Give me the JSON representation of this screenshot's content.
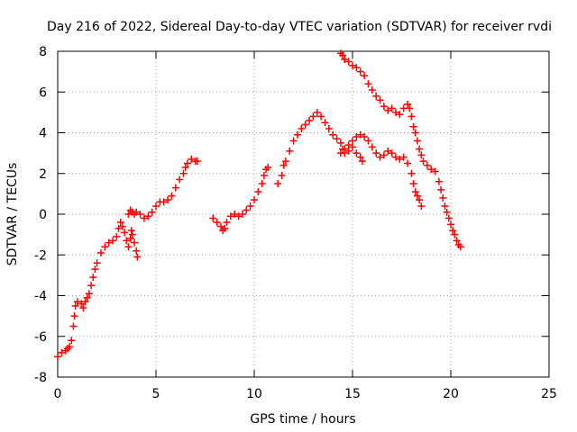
{
  "chart_data": {
    "type": "scatter",
    "title": "Day 216 of 2022, Sidereal Day-to-day VTEC variation (SDTVAR) for receiver rvdi",
    "xlabel": "GPS time / hours",
    "ylabel": "SDTVAR / TECUs",
    "xlim": [
      0,
      25
    ],
    "ylim": [
      -8,
      8
    ],
    "xticks": [
      0,
      5,
      10,
      15,
      20,
      25
    ],
    "yticks": [
      -8,
      -6,
      -4,
      -2,
      0,
      2,
      4,
      6,
      8
    ],
    "grid": true,
    "marker": "+",
    "colors": {
      "series": "#ff0000",
      "grid": "#a0a0a0",
      "axis": "#000000"
    },
    "series": [
      {
        "points": [
          [
            0.0,
            -7.0
          ],
          [
            0.2,
            -6.8
          ],
          [
            0.4,
            -6.7
          ],
          [
            0.5,
            -6.6
          ],
          [
            0.6,
            -6.5
          ],
          [
            0.7,
            -6.2
          ],
          [
            0.8,
            -5.5
          ],
          [
            0.85,
            -5.0
          ],
          [
            0.9,
            -4.5
          ],
          [
            1.0,
            -4.3
          ],
          [
            1.2,
            -4.4
          ],
          [
            1.3,
            -4.6
          ],
          [
            1.4,
            -4.3
          ],
          [
            1.5,
            -4.1
          ],
          [
            1.6,
            -3.9
          ],
          [
            1.7,
            -3.5
          ],
          [
            1.8,
            -3.1
          ],
          [
            1.9,
            -2.7
          ],
          [
            2.0,
            -2.4
          ],
          [
            2.2,
            -1.9
          ],
          [
            2.4,
            -1.6
          ],
          [
            2.6,
            -1.4
          ],
          [
            2.8,
            -1.3
          ],
          [
            3.0,
            -1.1
          ],
          [
            3.1,
            -0.7
          ],
          [
            3.2,
            -0.4
          ],
          [
            3.3,
            -0.6
          ],
          [
            3.4,
            -0.9
          ],
          [
            3.5,
            -1.3
          ],
          [
            3.6,
            -1.6
          ],
          [
            3.7,
            -1.2
          ],
          [
            3.75,
            -0.8
          ],
          [
            3.8,
            -1.0
          ],
          [
            3.9,
            -1.4
          ],
          [
            4.0,
            -1.8
          ],
          [
            4.05,
            -2.1
          ],
          [
            3.6,
            0.0
          ],
          [
            3.7,
            0.2
          ],
          [
            3.8,
            0.1
          ],
          [
            3.9,
            0.0
          ],
          [
            4.0,
            0.1
          ],
          [
            4.2,
            0.0
          ],
          [
            4.4,
            -0.2
          ],
          [
            4.6,
            -0.1
          ],
          [
            4.8,
            0.1
          ],
          [
            5.0,
            0.4
          ],
          [
            5.2,
            0.6
          ],
          [
            5.4,
            0.6
          ],
          [
            5.6,
            0.7
          ],
          [
            5.8,
            0.9
          ],
          [
            6.0,
            1.3
          ],
          [
            6.2,
            1.7
          ],
          [
            6.4,
            2.0
          ],
          [
            6.5,
            2.3
          ],
          [
            6.6,
            2.5
          ],
          [
            6.8,
            2.7
          ],
          [
            7.0,
            2.6
          ],
          [
            7.1,
            2.6
          ]
        ]
      },
      {
        "points": [
          [
            7.9,
            -0.2
          ],
          [
            8.1,
            -0.4
          ],
          [
            8.3,
            -0.6
          ],
          [
            8.4,
            -0.8
          ],
          [
            8.5,
            -0.7
          ],
          [
            8.6,
            -0.4
          ],
          [
            8.8,
            -0.1
          ],
          [
            9.0,
            0.0
          ],
          [
            9.2,
            -0.1
          ],
          [
            9.4,
            0.0
          ],
          [
            9.6,
            0.2
          ],
          [
            9.8,
            0.4
          ],
          [
            10.0,
            0.7
          ],
          [
            10.2,
            1.1
          ],
          [
            10.4,
            1.5
          ],
          [
            10.5,
            1.9
          ],
          [
            10.6,
            2.2
          ],
          [
            10.7,
            2.3
          ]
        ]
      },
      {
        "points": [
          [
            11.2,
            1.5
          ],
          [
            11.4,
            1.9
          ],
          [
            11.5,
            2.4
          ],
          [
            11.6,
            2.6
          ],
          [
            11.8,
            3.1
          ],
          [
            12.0,
            3.6
          ],
          [
            12.2,
            3.9
          ],
          [
            12.4,
            4.2
          ],
          [
            12.6,
            4.4
          ],
          [
            12.8,
            4.6
          ],
          [
            13.0,
            4.8
          ],
          [
            13.2,
            5.0
          ],
          [
            13.4,
            4.8
          ],
          [
            13.6,
            4.5
          ],
          [
            13.8,
            4.2
          ],
          [
            14.0,
            3.9
          ],
          [
            14.2,
            3.7
          ],
          [
            14.4,
            3.5
          ],
          [
            14.5,
            3.2
          ],
          [
            14.6,
            3.0
          ],
          [
            14.8,
            3.1
          ],
          [
            15.0,
            3.3
          ],
          [
            15.2,
            3.0
          ],
          [
            15.4,
            2.8
          ],
          [
            15.5,
            2.6
          ]
        ]
      },
      {
        "points": [
          [
            14.4,
            3.0
          ],
          [
            14.6,
            3.2
          ],
          [
            14.8,
            3.4
          ],
          [
            15.0,
            3.6
          ],
          [
            15.2,
            3.8
          ],
          [
            15.4,
            3.9
          ],
          [
            15.6,
            3.8
          ],
          [
            15.8,
            3.6
          ],
          [
            16.0,
            3.3
          ],
          [
            16.2,
            3.0
          ],
          [
            16.4,
            2.8
          ],
          [
            16.6,
            2.9
          ],
          [
            16.8,
            3.1
          ],
          [
            17.0,
            3.0
          ],
          [
            17.2,
            2.8
          ],
          [
            17.4,
            2.7
          ],
          [
            17.6,
            2.8
          ],
          [
            17.8,
            2.5
          ],
          [
            18.0,
            2.0
          ],
          [
            18.1,
            1.5
          ],
          [
            18.2,
            1.1
          ],
          [
            18.3,
            0.9
          ],
          [
            18.4,
            0.7
          ],
          [
            18.5,
            0.4
          ]
        ]
      },
      {
        "points": [
          [
            14.4,
            7.9
          ],
          [
            14.5,
            7.8
          ],
          [
            14.6,
            7.6
          ],
          [
            14.8,
            7.5
          ],
          [
            15.0,
            7.3
          ],
          [
            15.2,
            7.2
          ],
          [
            15.4,
            7.0
          ],
          [
            15.6,
            6.8
          ],
          [
            15.8,
            6.4
          ],
          [
            16.0,
            6.1
          ],
          [
            16.2,
            5.8
          ],
          [
            16.4,
            5.6
          ],
          [
            16.6,
            5.3
          ],
          [
            16.8,
            5.1
          ],
          [
            17.0,
            5.2
          ],
          [
            17.2,
            5.0
          ],
          [
            17.4,
            4.9
          ],
          [
            17.6,
            5.2
          ],
          [
            17.8,
            5.4
          ],
          [
            17.9,
            5.2
          ],
          [
            18.0,
            4.8
          ],
          [
            18.1,
            4.3
          ],
          [
            18.2,
            4.0
          ],
          [
            18.3,
            3.6
          ],
          [
            18.4,
            3.2
          ],
          [
            18.5,
            2.9
          ],
          [
            18.6,
            2.6
          ],
          [
            18.8,
            2.4
          ],
          [
            19.0,
            2.2
          ],
          [
            19.2,
            2.1
          ],
          [
            19.4,
            1.6
          ],
          [
            19.5,
            1.2
          ],
          [
            19.6,
            0.8
          ],
          [
            19.7,
            0.4
          ],
          [
            19.8,
            0.1
          ],
          [
            19.9,
            -0.2
          ],
          [
            20.0,
            -0.5
          ],
          [
            20.1,
            -0.8
          ],
          [
            20.2,
            -1.0
          ],
          [
            20.3,
            -1.3
          ],
          [
            20.4,
            -1.5
          ],
          [
            20.5,
            -1.6
          ]
        ]
      }
    ]
  }
}
